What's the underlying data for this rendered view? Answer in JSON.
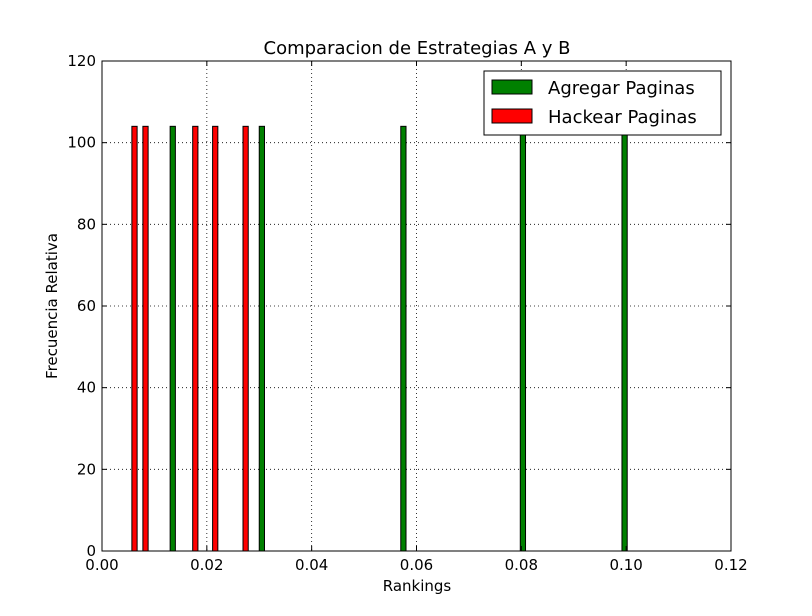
{
  "chart_data": {
    "type": "bar",
    "title": "Comparacion de Estrategias A y B",
    "xlabel": "Rankings",
    "ylabel": "Frecuencia Relativa",
    "xlim": [
      0.0,
      0.12
    ],
    "ylim": [
      0,
      120
    ],
    "x_ticks": [
      "0.00",
      "0.02",
      "0.04",
      "0.06",
      "0.08",
      "0.10",
      "0.12"
    ],
    "y_ticks": [
      "0",
      "20",
      "40",
      "60",
      "80",
      "100",
      "120"
    ],
    "grid": true,
    "legend_position": "top-right",
    "series": [
      {
        "name": "Agregar Paginas",
        "color": "#008000",
        "bin_width": 0.001,
        "points": [
          {
            "x": 0.0135,
            "y": 104
          },
          {
            "x": 0.0305,
            "y": 104
          },
          {
            "x": 0.0575,
            "y": 104
          },
          {
            "x": 0.0803,
            "y": 104
          },
          {
            "x": 0.0997,
            "y": 104
          }
        ]
      },
      {
        "name": "Hackear Paginas",
        "color": "#ff0000",
        "bin_width": 0.001,
        "points": [
          {
            "x": 0.0062,
            "y": 104
          },
          {
            "x": 0.0083,
            "y": 104
          },
          {
            "x": 0.0178,
            "y": 104
          },
          {
            "x": 0.0216,
            "y": 104
          },
          {
            "x": 0.0274,
            "y": 104
          }
        ]
      }
    ]
  }
}
